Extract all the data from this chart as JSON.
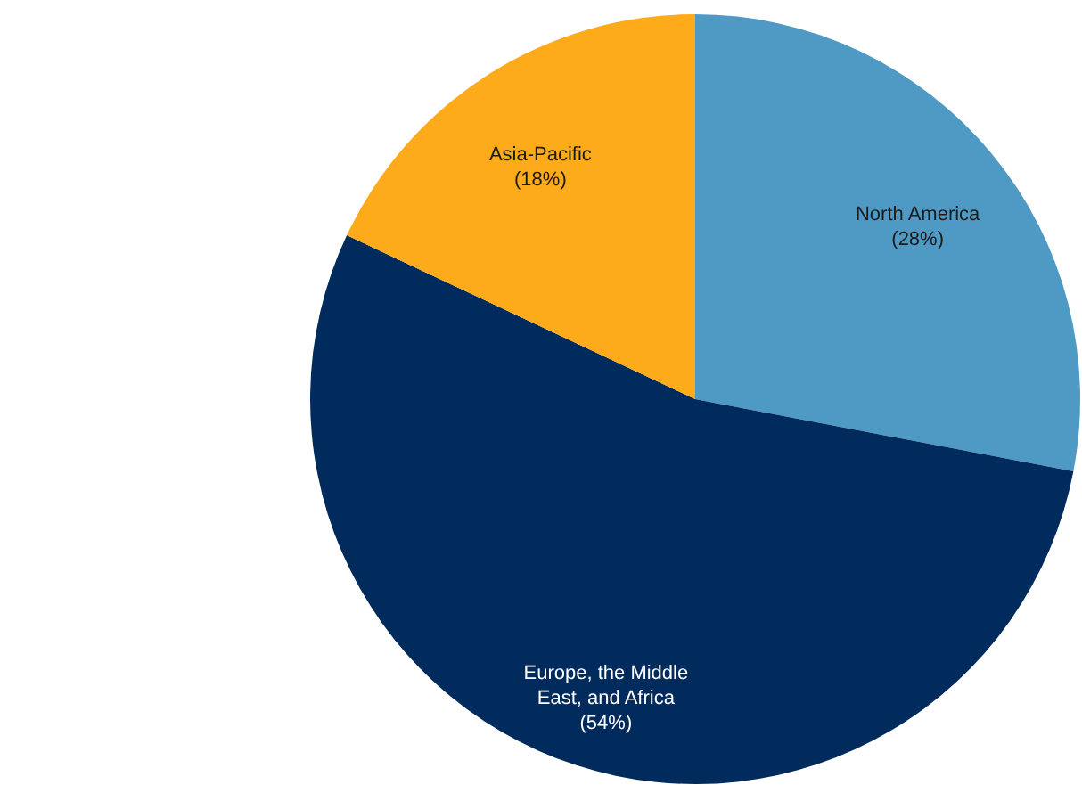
{
  "chart_data": {
    "type": "pie",
    "categories": [
      "North America",
      "Europe, the Middle East, and Africa",
      "Asia-Pacific"
    ],
    "values": [
      28,
      54,
      18
    ],
    "colors": [
      "#4f9ac4",
      "#002b5c",
      "#fdab1a"
    ],
    "value_labels": [
      "(28%)",
      "(54%)",
      "(18%)"
    ]
  }
}
